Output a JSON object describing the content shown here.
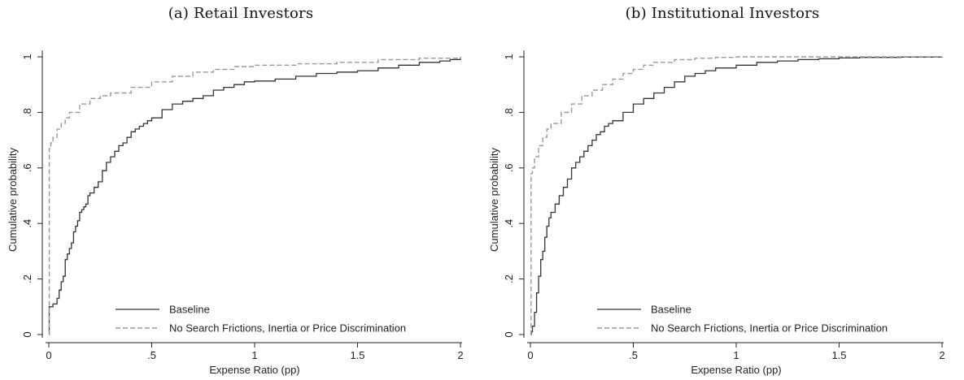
{
  "chart_data": [
    {
      "type": "line",
      "title": "(a) Retail Investors",
      "xlabel": "Expense Ratio (pp)",
      "ylabel": "Cumulative probability",
      "xlim": [
        0,
        2
      ],
      "ylim": [
        0,
        1
      ],
      "x_ticks": [
        0,
        0.5,
        1,
        1.5,
        2
      ],
      "x_tick_labels": [
        "0",
        ".5",
        "1",
        "1.5",
        "2"
      ],
      "y_ticks": [
        0,
        0.2,
        0.4,
        0.6,
        0.8,
        1
      ],
      "y_tick_labels": [
        "0",
        ".2",
        ".4",
        ".6",
        ".8",
        "1"
      ],
      "grid": false,
      "legend_position": "bottom-right",
      "series": [
        {
          "name": "Baseline",
          "style": "solid",
          "color": "#333333",
          "x": [
            0,
            0.002,
            0.02,
            0.04,
            0.05,
            0.06,
            0.07,
            0.08,
            0.09,
            0.1,
            0.11,
            0.12,
            0.13,
            0.14,
            0.15,
            0.16,
            0.17,
            0.18,
            0.19,
            0.2,
            0.22,
            0.24,
            0.26,
            0.28,
            0.3,
            0.32,
            0.34,
            0.36,
            0.38,
            0.4,
            0.42,
            0.44,
            0.46,
            0.48,
            0.5,
            0.55,
            0.6,
            0.65,
            0.7,
            0.75,
            0.8,
            0.85,
            0.9,
            0.95,
            1.0,
            1.1,
            1.2,
            1.3,
            1.4,
            1.5,
            1.6,
            1.7,
            1.8,
            1.9,
            1.95,
            2.0
          ],
          "y": [
            0.0,
            0.1,
            0.11,
            0.13,
            0.16,
            0.19,
            0.21,
            0.27,
            0.29,
            0.31,
            0.33,
            0.37,
            0.39,
            0.41,
            0.44,
            0.45,
            0.46,
            0.47,
            0.5,
            0.51,
            0.53,
            0.55,
            0.59,
            0.62,
            0.64,
            0.66,
            0.68,
            0.69,
            0.71,
            0.73,
            0.74,
            0.75,
            0.76,
            0.77,
            0.78,
            0.81,
            0.83,
            0.84,
            0.85,
            0.86,
            0.88,
            0.89,
            0.9,
            0.91,
            0.913,
            0.92,
            0.93,
            0.94,
            0.945,
            0.95,
            0.96,
            0.97,
            0.98,
            0.985,
            0.99,
            1.0
          ]
        },
        {
          "name": "No Search Frictions, Inertia or Price Discrimination",
          "style": "dashed",
          "color": "#999999",
          "x": [
            0,
            0.002,
            0.01,
            0.02,
            0.04,
            0.06,
            0.08,
            0.1,
            0.15,
            0.2,
            0.25,
            0.3,
            0.4,
            0.5,
            0.6,
            0.7,
            0.8,
            0.9,
            1.0,
            1.2,
            1.4,
            1.6,
            1.8,
            2.0
          ],
          "y": [
            0.0,
            0.67,
            0.69,
            0.71,
            0.74,
            0.76,
            0.78,
            0.8,
            0.83,
            0.85,
            0.86,
            0.87,
            0.89,
            0.91,
            0.93,
            0.945,
            0.955,
            0.965,
            0.97,
            0.975,
            0.98,
            0.99,
            0.995,
            1.0
          ]
        }
      ]
    },
    {
      "type": "line",
      "title": "(b) Institutional Investors",
      "xlabel": "Expense Ratio (pp)",
      "ylabel": "Cumulative probability",
      "xlim": [
        0,
        2
      ],
      "ylim": [
        0,
        1
      ],
      "x_ticks": [
        0,
        0.5,
        1,
        1.5,
        2
      ],
      "x_tick_labels": [
        "0",
        ".5",
        "1",
        "1.5",
        "2"
      ],
      "y_ticks": [
        0,
        0.2,
        0.4,
        0.6,
        0.8,
        1
      ],
      "y_tick_labels": [
        "0",
        ".2",
        ".4",
        ".6",
        ".8",
        "1"
      ],
      "grid": false,
      "legend_position": "bottom-right",
      "series": [
        {
          "name": "Baseline",
          "style": "solid",
          "color": "#333333",
          "x": [
            0,
            0.005,
            0.01,
            0.02,
            0.03,
            0.04,
            0.05,
            0.06,
            0.07,
            0.08,
            0.09,
            0.1,
            0.12,
            0.14,
            0.16,
            0.18,
            0.2,
            0.22,
            0.24,
            0.26,
            0.28,
            0.3,
            0.32,
            0.34,
            0.36,
            0.38,
            0.4,
            0.45,
            0.5,
            0.55,
            0.6,
            0.65,
            0.7,
            0.75,
            0.8,
            0.85,
            0.9,
            1.0,
            1.1,
            1.2,
            1.3,
            1.4,
            1.5,
            1.6,
            1.8,
            2.0
          ],
          "y": [
            0.0,
            0.01,
            0.03,
            0.08,
            0.15,
            0.21,
            0.27,
            0.3,
            0.35,
            0.39,
            0.42,
            0.44,
            0.47,
            0.5,
            0.53,
            0.56,
            0.6,
            0.62,
            0.64,
            0.66,
            0.68,
            0.7,
            0.72,
            0.73,
            0.75,
            0.76,
            0.77,
            0.8,
            0.83,
            0.85,
            0.87,
            0.89,
            0.91,
            0.93,
            0.94,
            0.95,
            0.96,
            0.97,
            0.98,
            0.985,
            0.99,
            0.993,
            0.996,
            0.998,
            0.999,
            1.0
          ]
        },
        {
          "name": "No Search Frictions, Inertia or Price Discrimination",
          "style": "dashed",
          "color": "#999999",
          "x": [
            0,
            0.003,
            0.01,
            0.02,
            0.04,
            0.06,
            0.08,
            0.1,
            0.15,
            0.2,
            0.25,
            0.3,
            0.35,
            0.4,
            0.45,
            0.5,
            0.55,
            0.6,
            0.7,
            0.8,
            0.9,
            1.0,
            1.2,
            1.5,
            2.0
          ],
          "y": [
            0.0,
            0.58,
            0.6,
            0.64,
            0.68,
            0.71,
            0.74,
            0.76,
            0.8,
            0.83,
            0.86,
            0.88,
            0.9,
            0.92,
            0.94,
            0.955,
            0.97,
            0.98,
            0.99,
            0.995,
            0.998,
            1.0,
            1.0,
            1.0,
            1.0
          ]
        }
      ]
    }
  ]
}
